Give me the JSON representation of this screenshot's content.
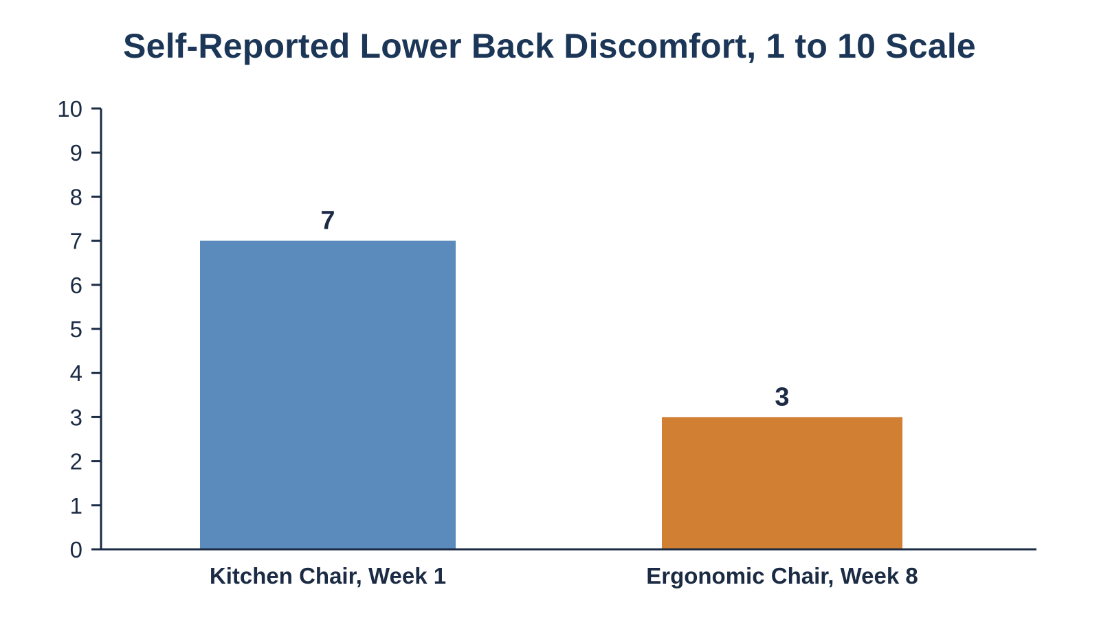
{
  "chart_data": {
    "type": "bar",
    "title": "Self-Reported Lower Back Discomfort, 1 to 10 Scale",
    "xlabel": "",
    "ylabel": "",
    "categories": [
      "Kitchen Chair, Week 1",
      "Ergonomic Chair, Week 8"
    ],
    "values": [
      7,
      3
    ],
    "data_labels": [
      "7",
      "3"
    ],
    "colors": [
      "#5b8bbd",
      "#d17f32"
    ],
    "ylim": [
      0,
      10
    ],
    "yticks": [
      "0",
      "1",
      "2",
      "3",
      "4",
      "5",
      "6",
      "7",
      "8",
      "9",
      "10"
    ],
    "grid": false,
    "legend": "none"
  }
}
